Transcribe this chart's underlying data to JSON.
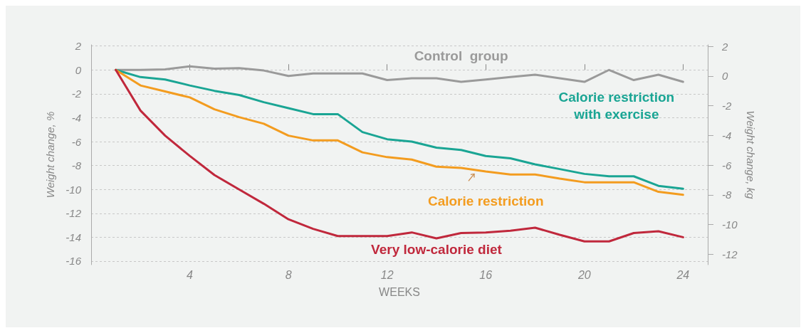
{
  "chart_data": {
    "type": "line",
    "xlabel": "WEEKS",
    "ylabel": "Weight change, %",
    "y2label": "Weight change, kg",
    "x": [
      1,
      2,
      3,
      4,
      5,
      6,
      7,
      8,
      9,
      10,
      11,
      12,
      13,
      14,
      15,
      16,
      17,
      18,
      19,
      20,
      21,
      22,
      23,
      24
    ],
    "xlim": [
      0,
      25
    ],
    "xticks": [
      4,
      8,
      12,
      16,
      20,
      24
    ],
    "ylim": [
      -16.3,
      2.1
    ],
    "yticks": [
      2,
      0,
      -2,
      -4,
      -6,
      -8,
      -10,
      -12,
      -14,
      -16
    ],
    "y2lim": [
      -12.7,
      2.1
    ],
    "y2ticks": [
      2,
      0,
      -2,
      -4,
      -6,
      -8,
      -10,
      -12
    ],
    "grid": "y",
    "marker": "none",
    "line_style": "solid",
    "series": [
      {
        "name": "Control  group",
        "color": "#9a9a9a",
        "values": [
          0,
          0,
          0.05,
          0.3,
          0.1,
          0.15,
          -0.05,
          -0.5,
          -0.3,
          -0.3,
          -0.3,
          -0.85,
          -0.7,
          -0.7,
          -1.0,
          -0.8,
          -0.6,
          -0.4,
          -0.7,
          -1.0,
          0,
          -0.85,
          -0.4,
          -1.0
        ]
      },
      {
        "name": "Calorie restriction\nwith exercise",
        "color": "#1aa594",
        "values": [
          0,
          -0.6,
          -0.8,
          -1.3,
          -1.75,
          -2.1,
          -2.7,
          -3.2,
          -3.7,
          -3.7,
          -5.2,
          -5.8,
          -6.0,
          -6.5,
          -6.7,
          -7.2,
          -7.4,
          -7.9,
          -8.3,
          -8.7,
          -8.9,
          -8.9,
          -9.7,
          -9.95
        ]
      },
      {
        "name": "Calorie restriction",
        "color": "#f39c1f",
        "values": [
          0,
          -1.3,
          -1.8,
          -2.3,
          -3.3,
          -3.95,
          -4.5,
          -5.5,
          -5.9,
          -5.9,
          -6.9,
          -7.3,
          -7.5,
          -8.1,
          -8.2,
          -8.5,
          -8.75,
          -8.75,
          -9.1,
          -9.4,
          -9.4,
          -9.4,
          -10.2,
          -10.45
        ]
      },
      {
        "name": "Very low-calorie diet",
        "color": "#c0283c",
        "values": [
          0,
          -3.4,
          -5.5,
          -7.2,
          -8.8,
          -10.0,
          -11.2,
          -12.5,
          -13.3,
          -13.9,
          -13.9,
          -13.9,
          -13.6,
          -14.1,
          -13.65,
          -13.6,
          -13.45,
          -13.2,
          -13.8,
          -14.35,
          -14.35,
          -13.65,
          -13.5,
          -14.0
        ]
      }
    ]
  }
}
